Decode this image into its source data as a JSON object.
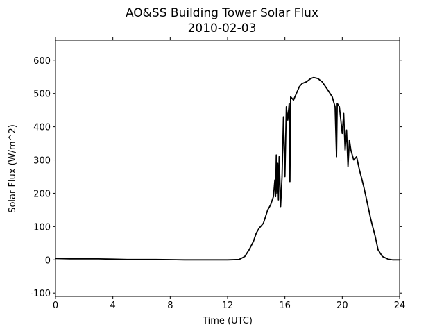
{
  "chart_data": {
    "type": "line",
    "title": "AO&SS Building Tower Solar Flux",
    "subtitle": "2010-02-03",
    "x_label": "Time (UTC)",
    "y_label": "Solar Flux (W/m^2)",
    "xlim": [
      0,
      24
    ],
    "xticks": [
      0,
      4,
      8,
      12,
      16,
      20,
      24
    ],
    "ylim": [
      -110,
      660
    ],
    "yticks": [
      -100,
      0,
      100,
      200,
      300,
      400,
      500,
      600
    ],
    "grid": false,
    "series": [
      {
        "color": "#000000",
        "x": [
          0,
          1,
          2,
          3,
          4,
          5,
          6,
          7,
          8,
          9,
          10,
          11,
          12,
          12.8,
          13.2,
          13.5,
          13.8,
          14.0,
          14.2,
          14.5,
          14.8,
          15.0,
          15.2,
          15.3,
          15.35,
          15.4,
          15.45,
          15.5,
          15.55,
          15.6,
          15.7,
          15.8,
          15.9,
          16.0,
          16.1,
          16.2,
          16.3,
          16.35,
          16.4,
          16.6,
          16.8,
          17.0,
          17.2,
          17.5,
          17.8,
          18.0,
          18.3,
          18.6,
          19.0,
          19.3,
          19.5,
          19.6,
          19.65,
          19.8,
          19.9,
          20.0,
          20.1,
          20.2,
          20.3,
          20.4,
          20.5,
          20.6,
          20.8,
          21.0,
          21.2,
          21.5,
          21.8,
          22.0,
          22.3,
          22.5,
          22.8,
          23.2,
          23.5,
          24
        ],
        "values": [
          4,
          3,
          3,
          3,
          2,
          1,
          1,
          1,
          0.5,
          0,
          0,
          0,
          0,
          1,
          10,
          30,
          55,
          80,
          95,
          110,
          150,
          165,
          190,
          240,
          190,
          315,
          200,
          290,
          180,
          310,
          160,
          250,
          430,
          250,
          460,
          420,
          470,
          235,
          490,
          480,
          500,
          520,
          530,
          535,
          545,
          548,
          545,
          535,
          510,
          490,
          460,
          310,
          470,
          460,
          420,
          380,
          440,
          330,
          390,
          280,
          360,
          330,
          300,
          310,
          270,
          220,
          160,
          120,
          70,
          30,
          10,
          2,
          0,
          0
        ]
      }
    ]
  }
}
